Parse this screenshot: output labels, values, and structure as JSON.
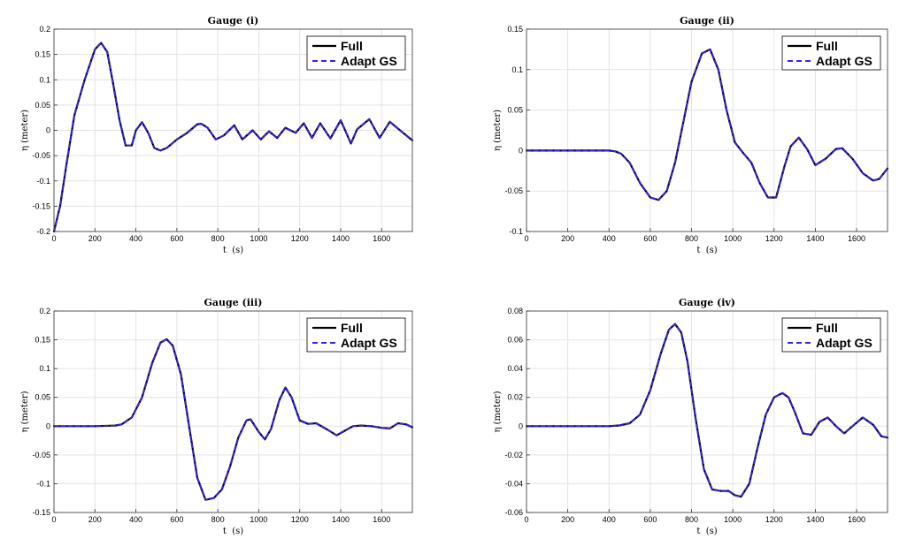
{
  "chart_data": [
    {
      "type": "line",
      "title": "Gauge (i)",
      "xlabel": "t  (s)",
      "ylabel": "η (meter)",
      "xlim": [
        0,
        1750
      ],
      "ylim": [
        -0.2,
        0.2
      ],
      "xticks": [
        0,
        200,
        400,
        600,
        800,
        1000,
        1200,
        1400,
        1600
      ],
      "xticklabels": [
        "0",
        "200",
        "400",
        "600",
        "800",
        "1000",
        "1200",
        "1400",
        "1600"
      ],
      "yticks": [
        -0.2,
        -0.15,
        -0.1,
        -0.05,
        0,
        0.05,
        0.1,
        0.15,
        0.2
      ],
      "yticklabels": [
        "-0.2",
        "-0.15",
        "-0.1",
        "-0.05",
        "0",
        "0.05",
        "0.1",
        "0.15",
        "0.2"
      ],
      "grid": true,
      "legend_position": "top-right",
      "series": [
        {
          "name": "Full",
          "color": "#000000",
          "style": "solid",
          "x": [
            0,
            30,
            60,
            100,
            150,
            200,
            230,
            260,
            290,
            320,
            350,
            380,
            400,
            430,
            460,
            490,
            520,
            550,
            580,
            600,
            650,
            700,
            720,
            750,
            790,
            830,
            880,
            920,
            970,
            1010,
            1050,
            1090,
            1130,
            1180,
            1220,
            1260,
            1300,
            1350,
            1400,
            1450,
            1480,
            1540,
            1590,
            1640,
            1690,
            1750
          ],
          "y": [
            -0.2,
            -0.15,
            -0.07,
            0.03,
            0.1,
            0.16,
            0.173,
            0.155,
            0.09,
            0.02,
            -0.03,
            -0.03,
            0.0,
            0.016,
            -0.005,
            -0.035,
            -0.04,
            -0.035,
            -0.025,
            -0.018,
            -0.005,
            0.012,
            0.013,
            0.005,
            -0.018,
            -0.01,
            0.01,
            -0.018,
            0.0,
            -0.018,
            -0.002,
            -0.015,
            0.005,
            -0.005,
            0.014,
            -0.015,
            0.014,
            -0.016,
            0.02,
            -0.026,
            0.002,
            0.022,
            -0.015,
            0.017,
            0.0,
            -0.02
          ]
        },
        {
          "name": "Adapt GS",
          "color": "#3322ff",
          "style": "dashed",
          "x": [
            0,
            30,
            60,
            100,
            150,
            200,
            230,
            260,
            290,
            320,
            350,
            380,
            400,
            430,
            460,
            490,
            520,
            550,
            580,
            600,
            650,
            700,
            720,
            750,
            790,
            830,
            880,
            920,
            970,
            1010,
            1050,
            1090,
            1130,
            1180,
            1220,
            1260,
            1300,
            1350,
            1400,
            1450,
            1480,
            1540,
            1590,
            1640,
            1690,
            1750
          ],
          "y": [
            -0.2,
            -0.15,
            -0.07,
            0.03,
            0.1,
            0.16,
            0.173,
            0.155,
            0.09,
            0.02,
            -0.03,
            -0.03,
            0.0,
            0.016,
            -0.005,
            -0.035,
            -0.04,
            -0.035,
            -0.025,
            -0.018,
            -0.005,
            0.012,
            0.013,
            0.005,
            -0.018,
            -0.01,
            0.01,
            -0.018,
            0.0,
            -0.018,
            -0.002,
            -0.015,
            0.005,
            -0.005,
            0.014,
            -0.015,
            0.014,
            -0.016,
            0.02,
            -0.026,
            0.002,
            0.022,
            -0.015,
            0.017,
            0.0,
            -0.02
          ]
        }
      ]
    },
    {
      "type": "line",
      "title": "Gauge (ii)",
      "xlabel": "t  (s)",
      "ylabel": "η (meter)",
      "xlim": [
        0,
        1750
      ],
      "ylim": [
        -0.1,
        0.15
      ],
      "xticks": [
        0,
        200,
        400,
        600,
        800,
        1000,
        1200,
        1400,
        1600
      ],
      "xticklabels": [
        "0",
        "200",
        "400",
        "600",
        "800",
        "1000",
        "1200",
        "1400",
        "1600"
      ],
      "yticks": [
        -0.1,
        -0.05,
        0,
        0.05,
        0.1,
        0.15
      ],
      "yticklabels": [
        "-0.1",
        "-0.05",
        "0",
        "0.05",
        "0.1",
        "0.15"
      ],
      "grid": true,
      "legend_position": "top-right",
      "series": [
        {
          "name": "Full",
          "color": "#000000",
          "style": "solid",
          "x": [
            0,
            100,
            200,
            300,
            400,
            430,
            460,
            500,
            550,
            600,
            640,
            680,
            720,
            760,
            800,
            850,
            890,
            930,
            970,
            1010,
            1050,
            1090,
            1130,
            1170,
            1210,
            1250,
            1280,
            1320,
            1360,
            1400,
            1450,
            1500,
            1530,
            1580,
            1630,
            1680,
            1710,
            1750
          ],
          "y": [
            0,
            0,
            0,
            0,
            0,
            -0.001,
            -0.004,
            -0.015,
            -0.04,
            -0.058,
            -0.061,
            -0.05,
            -0.015,
            0.035,
            0.085,
            0.12,
            0.125,
            0.1,
            0.05,
            0.01,
            -0.003,
            -0.015,
            -0.04,
            -0.058,
            -0.058,
            -0.02,
            0.005,
            0.016,
            0.002,
            -0.018,
            -0.01,
            0.002,
            0.003,
            -0.01,
            -0.028,
            -0.037,
            -0.035,
            -0.022
          ]
        },
        {
          "name": "Adapt GS",
          "color": "#3322ff",
          "style": "dashed",
          "x": [
            0,
            100,
            200,
            300,
            400,
            430,
            460,
            500,
            550,
            600,
            640,
            680,
            720,
            760,
            800,
            850,
            890,
            930,
            970,
            1010,
            1050,
            1090,
            1130,
            1170,
            1210,
            1250,
            1280,
            1320,
            1360,
            1400,
            1450,
            1500,
            1530,
            1580,
            1630,
            1680,
            1710,
            1750
          ],
          "y": [
            0,
            0,
            0,
            0,
            0,
            -0.001,
            -0.004,
            -0.015,
            -0.04,
            -0.058,
            -0.061,
            -0.05,
            -0.015,
            0.035,
            0.085,
            0.12,
            0.125,
            0.1,
            0.05,
            0.01,
            -0.003,
            -0.015,
            -0.04,
            -0.058,
            -0.058,
            -0.02,
            0.005,
            0.016,
            0.002,
            -0.018,
            -0.01,
            0.002,
            0.003,
            -0.01,
            -0.028,
            -0.037,
            -0.035,
            -0.022
          ]
        }
      ]
    },
    {
      "type": "line",
      "title": "Gauge (iii)",
      "xlabel": "t  (s)",
      "ylabel": "η (meter)",
      "xlim": [
        0,
        1750
      ],
      "ylim": [
        -0.15,
        0.2
      ],
      "xticks": [
        0,
        200,
        400,
        600,
        800,
        1000,
        1200,
        1400,
        1600
      ],
      "xticklabels": [
        "0",
        "200",
        "400",
        "600",
        "800",
        "1000",
        "1200",
        "1400",
        "1600"
      ],
      "yticks": [
        -0.15,
        -0.1,
        -0.05,
        0,
        0.05,
        0.1,
        0.15,
        0.2
      ],
      "yticklabels": [
        "-0.15",
        "-0.1",
        "-0.05",
        "0",
        "0.05",
        "0.1",
        "0.15",
        "0.2"
      ],
      "grid": true,
      "legend_position": "top-right",
      "series": [
        {
          "name": "Full",
          "color": "#000000",
          "style": "solid",
          "x": [
            0,
            100,
            200,
            300,
            330,
            380,
            430,
            480,
            520,
            550,
            580,
            620,
            660,
            700,
            740,
            780,
            820,
            860,
            900,
            940,
            960,
            1000,
            1030,
            1060,
            1100,
            1130,
            1160,
            1200,
            1240,
            1280,
            1330,
            1380,
            1420,
            1460,
            1500,
            1550,
            1600,
            1640,
            1680,
            1720,
            1750
          ],
          "y": [
            0,
            0,
            0,
            0.001,
            0.003,
            0.015,
            0.05,
            0.11,
            0.145,
            0.151,
            0.14,
            0.09,
            0.0,
            -0.09,
            -0.128,
            -0.125,
            -0.11,
            -0.07,
            -0.02,
            0.01,
            0.012,
            -0.01,
            -0.023,
            -0.005,
            0.045,
            0.067,
            0.05,
            0.01,
            0.004,
            0.005,
            -0.005,
            -0.016,
            -0.008,
            0.0,
            0.001,
            0.0,
            -0.003,
            -0.004,
            0.005,
            0.003,
            -0.002
          ]
        },
        {
          "name": "Adapt GS",
          "color": "#3322ff",
          "style": "dashed",
          "x": [
            0,
            100,
            200,
            300,
            330,
            380,
            430,
            480,
            520,
            550,
            580,
            620,
            660,
            700,
            740,
            780,
            820,
            860,
            900,
            940,
            960,
            1000,
            1030,
            1060,
            1100,
            1130,
            1160,
            1200,
            1240,
            1280,
            1330,
            1380,
            1420,
            1460,
            1500,
            1550,
            1600,
            1640,
            1680,
            1720,
            1750
          ],
          "y": [
            0,
            0,
            0,
            0.001,
            0.003,
            0.015,
            0.05,
            0.11,
            0.145,
            0.151,
            0.14,
            0.09,
            0.0,
            -0.09,
            -0.128,
            -0.125,
            -0.11,
            -0.07,
            -0.02,
            0.01,
            0.012,
            -0.01,
            -0.023,
            -0.005,
            0.045,
            0.067,
            0.05,
            0.01,
            0.004,
            0.005,
            -0.005,
            -0.016,
            -0.008,
            0.0,
            0.001,
            0.0,
            -0.003,
            -0.004,
            0.005,
            0.003,
            -0.002
          ]
        }
      ]
    },
    {
      "type": "line",
      "title": "Gauge (iv)",
      "xlabel": "t  (s)",
      "ylabel": "η (meter)",
      "xlim": [
        0,
        1750
      ],
      "ylim": [
        -0.06,
        0.08
      ],
      "xticks": [
        0,
        200,
        400,
        600,
        800,
        1000,
        1200,
        1400,
        1600
      ],
      "xticklabels": [
        "0",
        "200",
        "400",
        "600",
        "800",
        "1000",
        "1200",
        "1400",
        "1600"
      ],
      "yticks": [
        -0.06,
        -0.04,
        -0.02,
        0,
        0.02,
        0.04,
        0.06,
        0.08
      ],
      "yticklabels": [
        "-0.06",
        "-0.04",
        "-0.02",
        "0",
        "0.02",
        "0.04",
        "0.06",
        "0.08"
      ],
      "grid": true,
      "legend_position": "top-right",
      "series": [
        {
          "name": "Full",
          "color": "#000000",
          "style": "solid",
          "x": [
            0,
            100,
            200,
            300,
            400,
            450,
            500,
            550,
            600,
            650,
            690,
            720,
            750,
            780,
            820,
            860,
            900,
            940,
            980,
            1010,
            1040,
            1080,
            1120,
            1160,
            1200,
            1240,
            1270,
            1300,
            1340,
            1380,
            1420,
            1460,
            1500,
            1540,
            1580,
            1630,
            1680,
            1720,
            1750
          ],
          "y": [
            0,
            0,
            0,
            0,
            0,
            0.0005,
            0.002,
            0.008,
            0.025,
            0.05,
            0.067,
            0.071,
            0.065,
            0.045,
            0.005,
            -0.03,
            -0.044,
            -0.045,
            -0.045,
            -0.048,
            -0.049,
            -0.04,
            -0.015,
            0.008,
            0.02,
            0.023,
            0.02,
            0.01,
            -0.005,
            -0.006,
            0.003,
            0.006,
            0.0,
            -0.005,
            0.0,
            0.006,
            0.001,
            -0.007,
            -0.008
          ]
        },
        {
          "name": "Adapt GS",
          "color": "#3322ff",
          "style": "dashed",
          "x": [
            0,
            100,
            200,
            300,
            400,
            450,
            500,
            550,
            600,
            650,
            690,
            720,
            750,
            780,
            820,
            860,
            900,
            940,
            980,
            1010,
            1040,
            1080,
            1120,
            1160,
            1200,
            1240,
            1270,
            1300,
            1340,
            1380,
            1420,
            1460,
            1500,
            1540,
            1580,
            1630,
            1680,
            1720,
            1750
          ],
          "y": [
            0,
            0,
            0,
            0,
            0,
            0.0005,
            0.002,
            0.008,
            0.025,
            0.05,
            0.067,
            0.071,
            0.065,
            0.045,
            0.005,
            -0.03,
            -0.044,
            -0.045,
            -0.045,
            -0.048,
            -0.049,
            -0.04,
            -0.015,
            0.008,
            0.02,
            0.023,
            0.02,
            0.01,
            -0.005,
            -0.006,
            0.003,
            0.006,
            0.0,
            -0.005,
            0.0,
            0.006,
            0.001,
            -0.007,
            -0.008
          ]
        }
      ]
    }
  ]
}
